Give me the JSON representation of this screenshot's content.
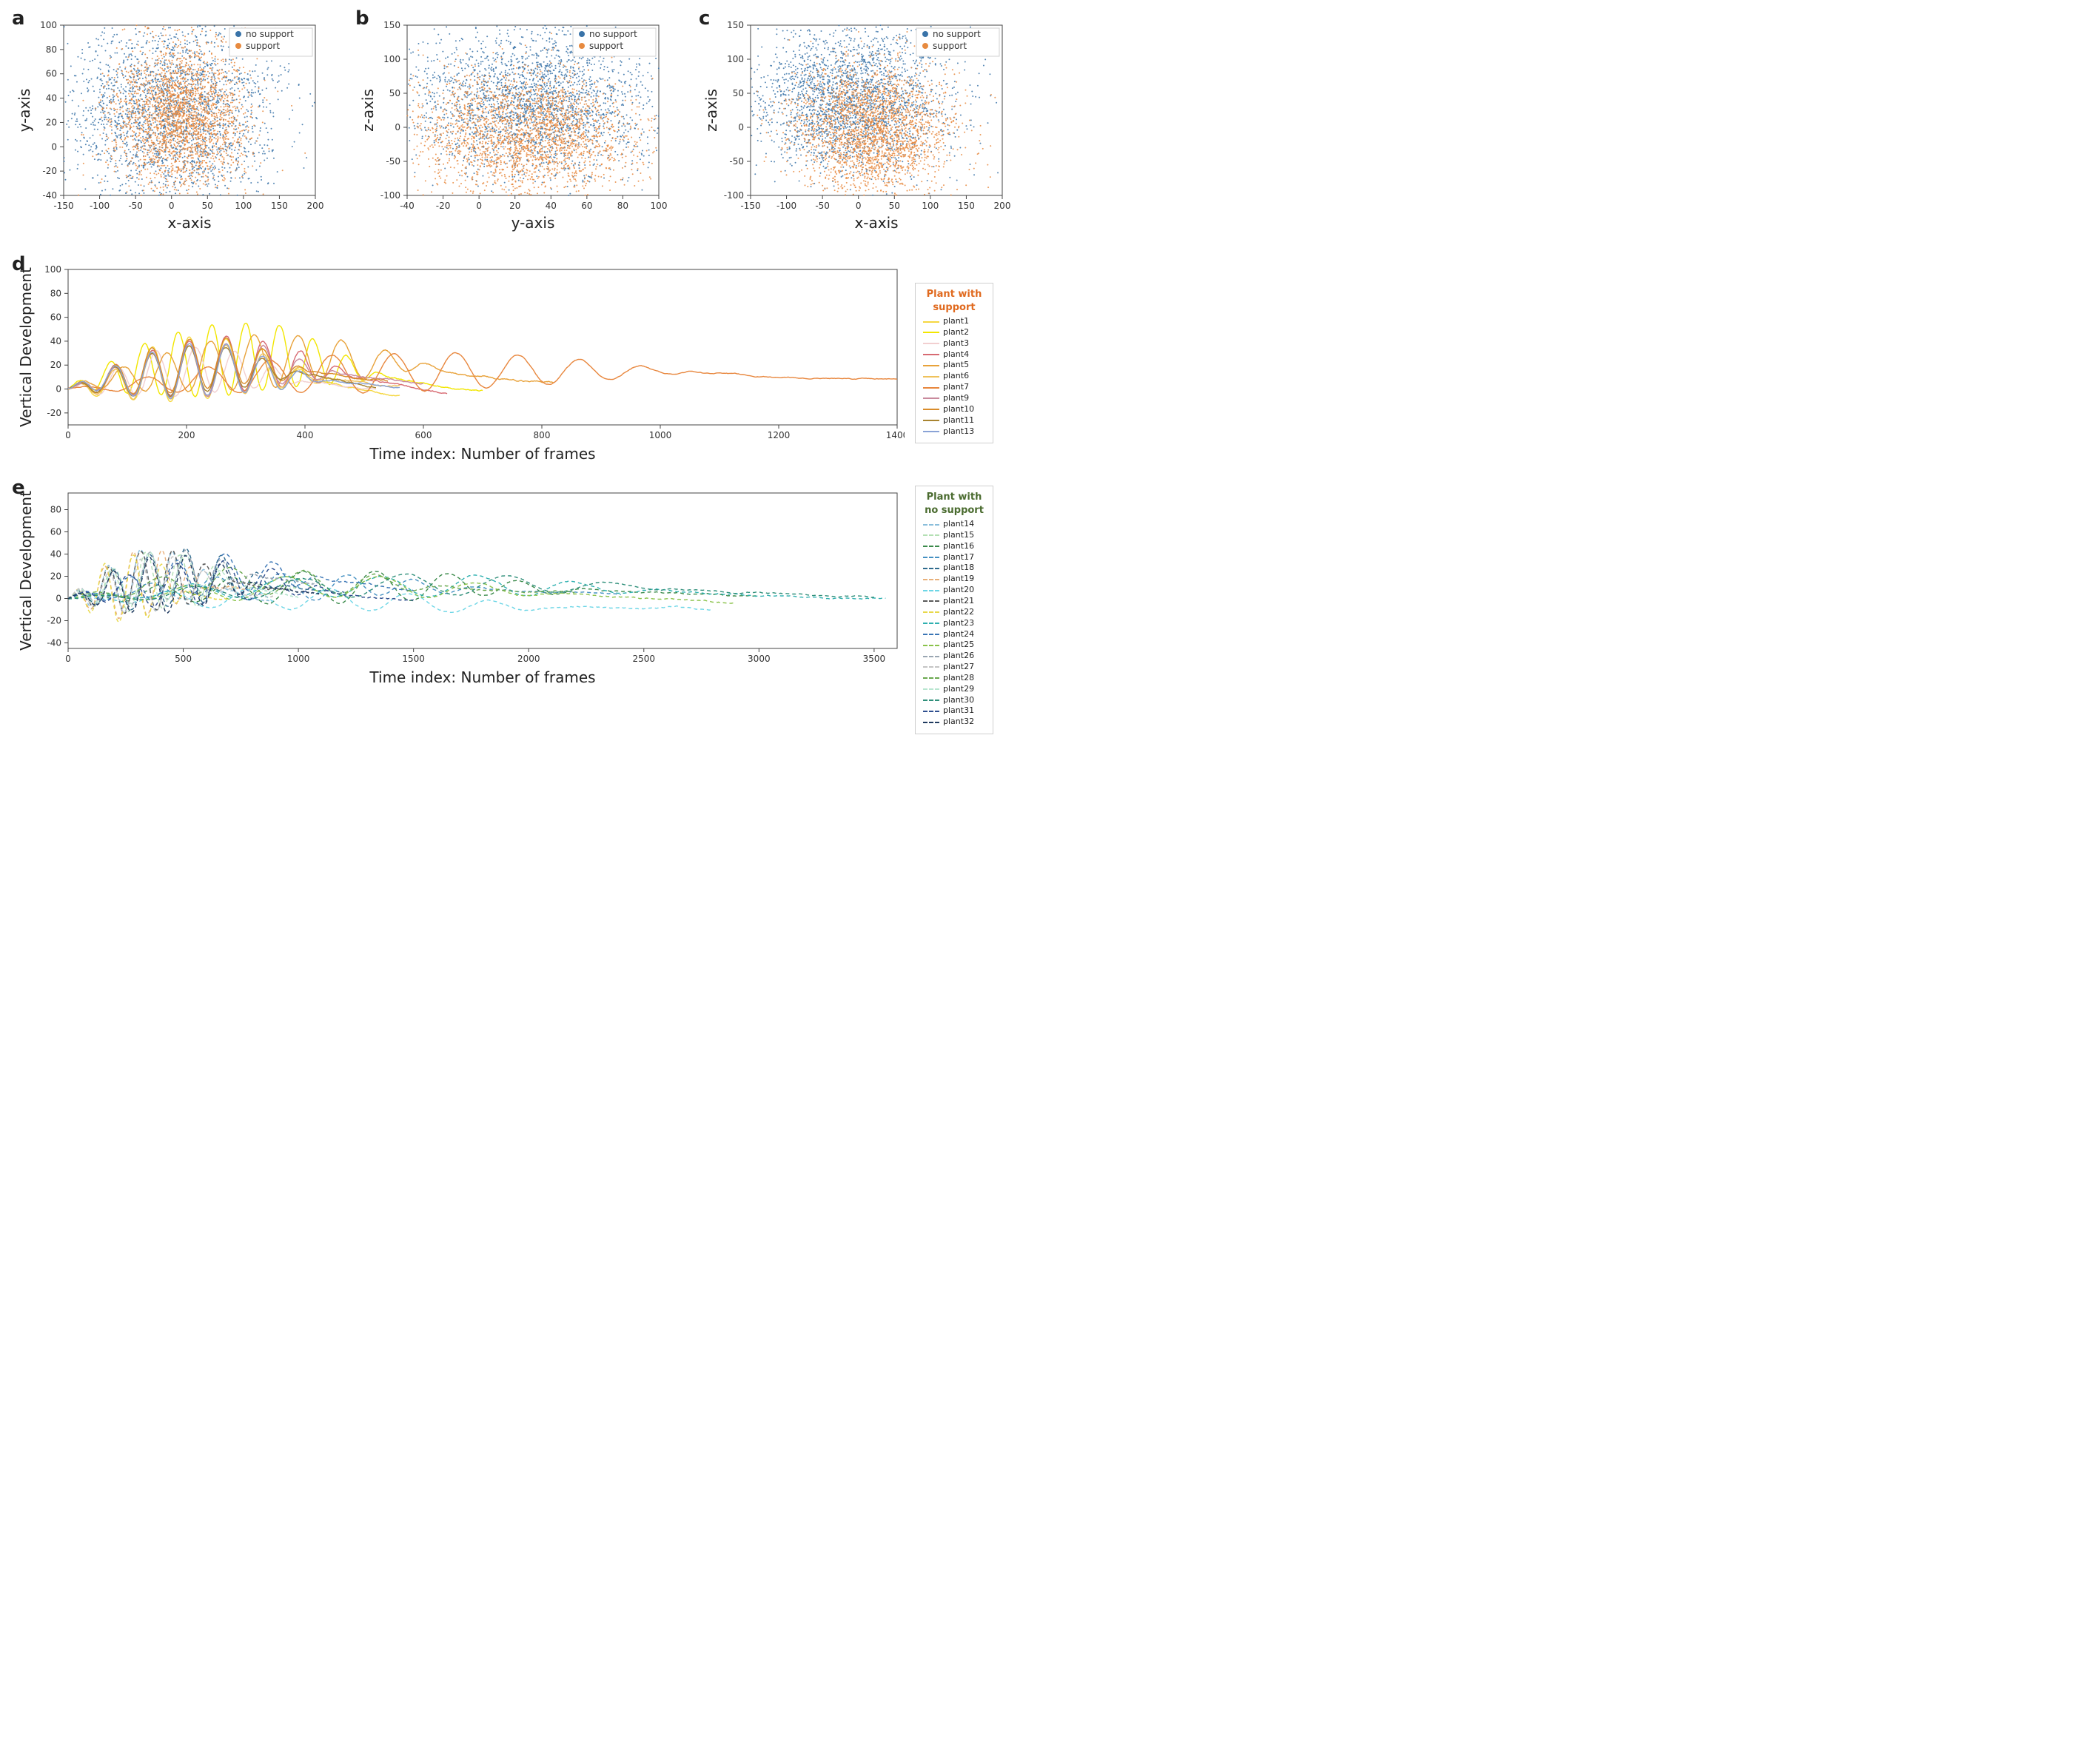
{
  "colors": {
    "no_support": "#3973a8",
    "support": "#e78a3f",
    "axis": "#444444",
    "spine": "#444444",
    "tick": "#444444",
    "background": "#ffffff",
    "legend_border": "#cfcfcf"
  },
  "panel_labels": {
    "a": "a",
    "b": "b",
    "c": "c",
    "d": "d",
    "e": "e"
  },
  "label_fontsize": 26,
  "axis_title_fontsize": 20,
  "tick_fontsize": 12,
  "scatter_panels": {
    "a": {
      "xlabel": "x-axis",
      "ylabel": "y-axis",
      "xlim": [
        -150,
        200
      ],
      "ylim": [
        -40,
        100
      ],
      "xticks": [
        -150,
        -100,
        -50,
        0,
        50,
        100,
        150,
        200
      ],
      "yticks": [
        -40,
        -20,
        0,
        20,
        40,
        60,
        80,
        100
      ],
      "legend": [
        {
          "label": "no support",
          "color": "#3973a8"
        },
        {
          "label": "support",
          "color": "#e78a3f"
        }
      ],
      "seed_no_support": 11,
      "seed_support": 12,
      "n_no_support": 2400,
      "n_support": 2400,
      "center_no_support": [
        0,
        30
      ],
      "spread_no_support": [
        70,
        40
      ],
      "center_support": [
        15,
        25
      ],
      "spread_support": [
        45,
        30
      ]
    },
    "b": {
      "xlabel": "y-axis",
      "ylabel": "z-axis",
      "xlim": [
        -40,
        100
      ],
      "ylim": [
        -100,
        150
      ],
      "xticks": [
        -40,
        -20,
        0,
        20,
        40,
        60,
        80,
        100
      ],
      "yticks": [
        -100,
        -50,
        0,
        50,
        100,
        150
      ],
      "legend": [
        {
          "label": "no support",
          "color": "#3973a8"
        },
        {
          "label": "support",
          "color": "#e78a3f"
        }
      ],
      "seed_no_support": 21,
      "seed_support": 22,
      "n_no_support": 2400,
      "n_support": 2400,
      "center_no_support": [
        30,
        40
      ],
      "spread_no_support": [
        35,
        55
      ],
      "center_support": [
        25,
        -10
      ],
      "spread_support": [
        32,
        45
      ]
    },
    "c": {
      "xlabel": "x-axis",
      "ylabel": "z-axis",
      "xlim": [
        -150,
        200
      ],
      "ylim": [
        -100,
        150
      ],
      "xticks": [
        -150,
        -100,
        -50,
        0,
        50,
        100,
        150,
        200
      ],
      "yticks": [
        -100,
        -50,
        0,
        50,
        100,
        150
      ],
      "legend": [
        {
          "label": "no support",
          "color": "#3973a8"
        },
        {
          "label": "support",
          "color": "#e78a3f"
        }
      ],
      "seed_no_support": 31,
      "seed_support": 32,
      "n_no_support": 2400,
      "n_support": 2400,
      "center_no_support": [
        -10,
        40
      ],
      "spread_no_support": [
        70,
        55
      ],
      "center_support": [
        20,
        -5
      ],
      "spread_support": [
        55,
        48
      ]
    }
  },
  "ts_panel_d": {
    "xlabel": "Time index: Number of frames",
    "ylabel": "Vertical Development",
    "xlim": [
      0,
      1400
    ],
    "ylim": [
      -30,
      100
    ],
    "xticks": [
      0,
      200,
      400,
      600,
      800,
      1000,
      1200,
      1400
    ],
    "yticks": [
      -20,
      0,
      20,
      40,
      60,
      80,
      100
    ],
    "legend_title": "Plant with support",
    "legend_title_color": "#e06a1f",
    "line_style": "solid",
    "series": [
      {
        "name": "plant1",
        "color": "#f5d742",
        "len": 560,
        "amp": 26,
        "freq": 0.1,
        "growth": 0.11,
        "seed": 101
      },
      {
        "name": "plant2",
        "color": "#f2e600",
        "len": 700,
        "amp": 30,
        "freq": 0.11,
        "growth": 0.12,
        "seed": 102
      },
      {
        "name": "plant3",
        "color": "#f2cfd0",
        "len": 520,
        "amp": 20,
        "freq": 0.095,
        "growth": 0.1,
        "seed": 103
      },
      {
        "name": "plant4",
        "color": "#d76a72",
        "len": 640,
        "amp": 24,
        "freq": 0.1,
        "growth": 0.105,
        "seed": 104
      },
      {
        "name": "plant5",
        "color": "#e8a23a",
        "len": 820,
        "amp": 22,
        "freq": 0.085,
        "growth": 0.095,
        "seed": 105
      },
      {
        "name": "plant6",
        "color": "#efc25b",
        "len": 560,
        "amp": 22,
        "freq": 0.1,
        "growth": 0.1,
        "seed": 106
      },
      {
        "name": "plant7",
        "color": "#e8873e",
        "len": 1400,
        "amp": 16,
        "freq": 0.06,
        "growth": 0.028,
        "seed": 107
      },
      {
        "name": "plant9",
        "color": "#c98a9d",
        "len": 600,
        "amp": 22,
        "freq": 0.1,
        "growth": 0.1,
        "seed": 109
      },
      {
        "name": "plant10",
        "color": "#d98c2b",
        "len": 540,
        "amp": 22,
        "freq": 0.1,
        "growth": 0.1,
        "seed": 110
      },
      {
        "name": "plant11",
        "color": "#a88430",
        "len": 520,
        "amp": 20,
        "freq": 0.1,
        "growth": 0.1,
        "seed": 111
      },
      {
        "name": "plant13",
        "color": "#8aa3d6",
        "len": 560,
        "amp": 22,
        "freq": 0.1,
        "growth": 0.095,
        "seed": 113
      }
    ]
  },
  "ts_panel_e": {
    "xlabel": "Time index: Number of frames",
    "ylabel": "Vertical Development",
    "xlim": [
      0,
      3600
    ],
    "ylim": [
      -45,
      95
    ],
    "xticks": [
      0,
      500,
      1000,
      1500,
      2000,
      2500,
      3000,
      3500
    ],
    "yticks": [
      -40,
      -20,
      0,
      20,
      40,
      60,
      80
    ],
    "legend_title": "Plant with no support",
    "legend_title_color": "#4a6b2f",
    "line_style": "dashed",
    "series": [
      {
        "name": "plant14",
        "color": "#8abedb",
        "len": 900,
        "amp": 28,
        "freq": 0.045,
        "growth": 0.06,
        "seed": 214
      },
      {
        "name": "plant15",
        "color": "#b4e0b4",
        "len": 1000,
        "amp": 26,
        "freq": 0.042,
        "growth": 0.055,
        "seed": 215
      },
      {
        "name": "plant16",
        "color": "#3a8a4a",
        "len": 3000,
        "amp": 14,
        "freq": 0.02,
        "growth": 0.012,
        "seed": 216
      },
      {
        "name": "plant17",
        "color": "#4490c2",
        "len": 2400,
        "amp": 12,
        "freq": 0.022,
        "growth": 0.016,
        "seed": 217
      },
      {
        "name": "plant18",
        "color": "#2f6b8e",
        "len": 1200,
        "amp": 26,
        "freq": 0.04,
        "growth": 0.05,
        "seed": 218
      },
      {
        "name": "plant19",
        "color": "#e8b07a",
        "len": 800,
        "amp": 30,
        "freq": 0.05,
        "growth": 0.055,
        "seed": 219
      },
      {
        "name": "plant20",
        "color": "#6dd6e6",
        "len": 2800,
        "amp": 10,
        "freq": 0.018,
        "growth": 0.005,
        "seed": 220
      },
      {
        "name": "plant21",
        "color": "#5a5a5a",
        "len": 950,
        "amp": 28,
        "freq": 0.045,
        "growth": 0.055,
        "seed": 221
      },
      {
        "name": "plant22",
        "color": "#e8d84a",
        "len": 700,
        "amp": 30,
        "freq": 0.05,
        "growth": 0.06,
        "seed": 222
      },
      {
        "name": "plant23",
        "color": "#2fb0b0",
        "len": 3550,
        "amp": 10,
        "freq": 0.015,
        "growth": 0.008,
        "seed": 223
      },
      {
        "name": "plant24",
        "color": "#3a75b5",
        "len": 1500,
        "amp": 18,
        "freq": 0.03,
        "growth": 0.042,
        "seed": 224
      },
      {
        "name": "plant25",
        "color": "#8ac24a",
        "len": 2900,
        "amp": 10,
        "freq": 0.015,
        "growth": 0.012,
        "seed": 225
      },
      {
        "name": "plant26",
        "color": "#9aa6b2",
        "len": 1100,
        "amp": 22,
        "freq": 0.04,
        "growth": 0.05,
        "seed": 226
      },
      {
        "name": "plant27",
        "color": "#c4c4c4",
        "len": 900,
        "amp": 24,
        "freq": 0.045,
        "growth": 0.05,
        "seed": 227
      },
      {
        "name": "plant28",
        "color": "#6aa84f",
        "len": 2200,
        "amp": 12,
        "freq": 0.02,
        "growth": 0.02,
        "seed": 228
      },
      {
        "name": "plant29",
        "color": "#b8e6d0",
        "len": 1000,
        "amp": 22,
        "freq": 0.04,
        "growth": 0.05,
        "seed": 229
      },
      {
        "name": "plant30",
        "color": "#2f8f7a",
        "len": 3500,
        "amp": 10,
        "freq": 0.014,
        "growth": 0.01,
        "seed": 230
      },
      {
        "name": "plant31",
        "color": "#2f4f8f",
        "len": 1500,
        "amp": 20,
        "freq": 0.03,
        "growth": 0.04,
        "seed": 231
      },
      {
        "name": "plant32",
        "color": "#1f3a5f",
        "len": 1100,
        "amp": 26,
        "freq": 0.04,
        "growth": 0.05,
        "seed": 232
      }
    ]
  }
}
